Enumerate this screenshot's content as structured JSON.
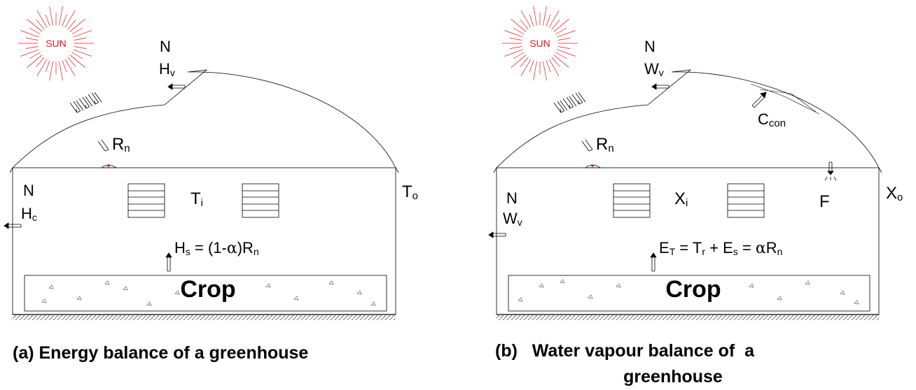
{
  "panel_a": {
    "sun": "SUN",
    "vent_n": "N",
    "vent_flux_main": "H",
    "vent_flux_sub": "v",
    "radiation_main": "R",
    "radiation_sub": "n",
    "wall_n": "N",
    "wall_flux_main": "H",
    "wall_flux_sub": "c",
    "inside_main": "T",
    "inside_sub": "i",
    "outside_main": "T",
    "outside_sub": "o",
    "eq_h": "H",
    "eq_h_sub": "s",
    "eq_mid": " = (1-",
    "eq_alpha": "α",
    "eq_close": ")R",
    "eq_r_sub": "n",
    "crop": "Crop",
    "caption": "(a) Energy balance of  a greenhouse"
  },
  "panel_b": {
    "sun": "SUN",
    "vent_n": "N",
    "vent_flux_main": "W",
    "vent_flux_sub": "v",
    "radiation_main": "R",
    "radiation_sub": "n",
    "condensation_main": "C",
    "condensation_sub": "con",
    "fog_label": "F",
    "wall_n": "N",
    "wall_flux_main": "W",
    "wall_flux_sub": "v",
    "inside_main": "X",
    "inside_sub": "i",
    "outside_main": "X",
    "outside_sub": "o",
    "eq_e": "E",
    "eq_e_sub": "T",
    "eq_eq1": " = T",
    "eq_t_sub": "r",
    "eq_plus": " + E",
    "eq_es_sub": "s",
    "eq_eq2": " = ",
    "eq_alpha": "α",
    "eq_r": "R",
    "eq_r_sub": "n",
    "crop": "Crop",
    "caption_line1": "(b)   Water vapour balance of  a",
    "caption_line2": "greenhouse"
  },
  "colors": {
    "sun": "#e0161e",
    "lines": "#000000",
    "sensor": "#b000b0"
  }
}
